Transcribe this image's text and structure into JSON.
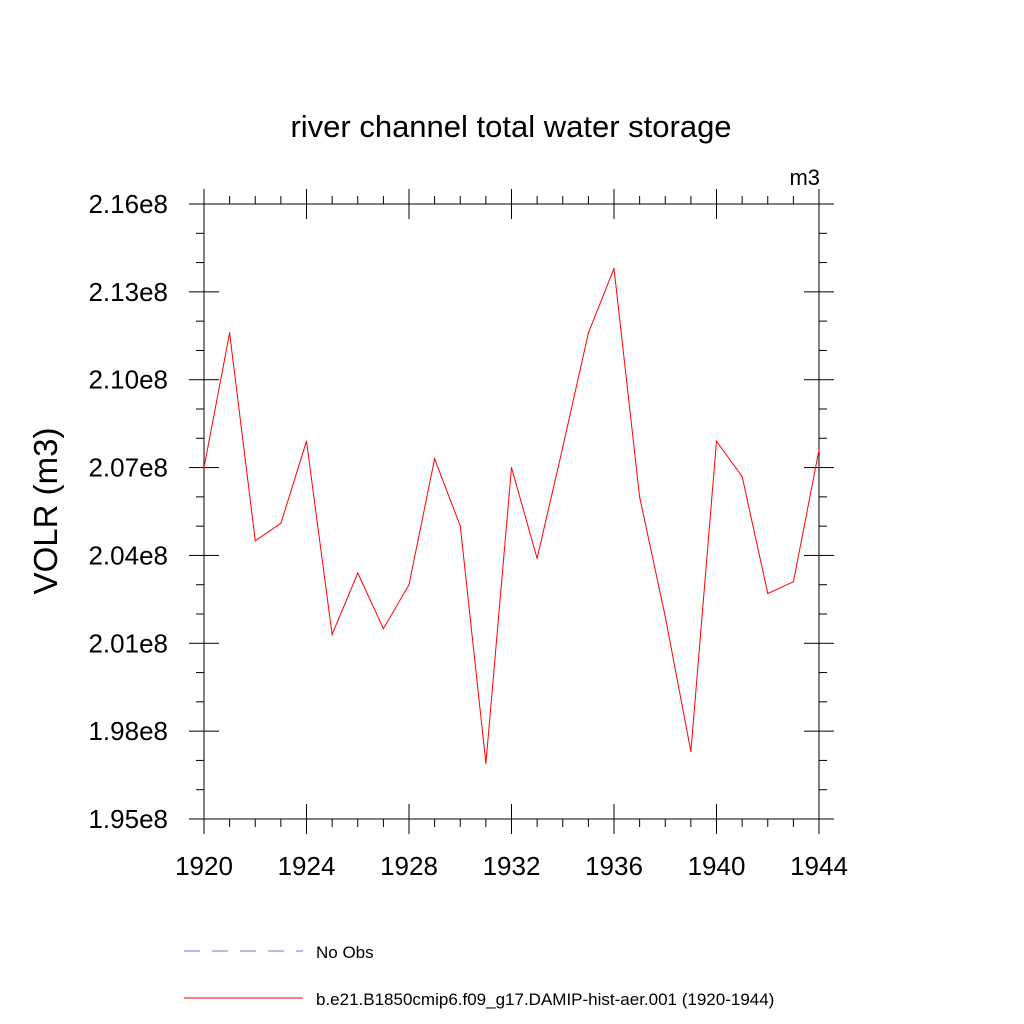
{
  "chart_data": {
    "type": "line",
    "title": "river channel total water storage",
    "units_label": "m3",
    "ylabel": "VOLR  (m3)",
    "xlabel": "",
    "xlim": [
      1920,
      1944
    ],
    "ylim": [
      195000000,
      216000000
    ],
    "x_ticks": [
      1920,
      1924,
      1928,
      1932,
      1936,
      1940,
      1944
    ],
    "y_ticks": [
      195000000,
      198000000,
      201000000,
      204000000,
      207000000,
      210000000,
      213000000,
      216000000
    ],
    "y_tick_labels": [
      "1.95e8",
      "1.98e8",
      "2.01e8",
      "2.04e8",
      "2.07e8",
      "2.10e8",
      "2.13e8",
      "2.16e8"
    ],
    "grid": false,
    "legend_position": "bottom",
    "series": [
      {
        "name": "b.e21.B1850cmip6.f09_g17.DAMIP-hist-aer.001 (1920-1944)",
        "color": "#ff0000",
        "style": "solid",
        "x": [
          1920,
          1921,
          1922,
          1923,
          1924,
          1925,
          1926,
          1927,
          1928,
          1929,
          1930,
          1931,
          1932,
          1933,
          1934,
          1935,
          1936,
          1937,
          1938,
          1939,
          1940,
          1941,
          1942,
          1943,
          1944
        ],
        "values": [
          207000000,
          211600000,
          204500000,
          205100000,
          207900000,
          201300000,
          203400000,
          201500000,
          203000000,
          207300000,
          205000000,
          196900000,
          207000000,
          203900000,
          207700000,
          211600000,
          213800000,
          206000000,
          201900000,
          197300000,
          207900000,
          206700000,
          202700000,
          203100000,
          207600000
        ]
      },
      {
        "name": "No Obs",
        "color": "#7b6fd0",
        "style": "dashed",
        "x": [],
        "values": []
      }
    ]
  }
}
